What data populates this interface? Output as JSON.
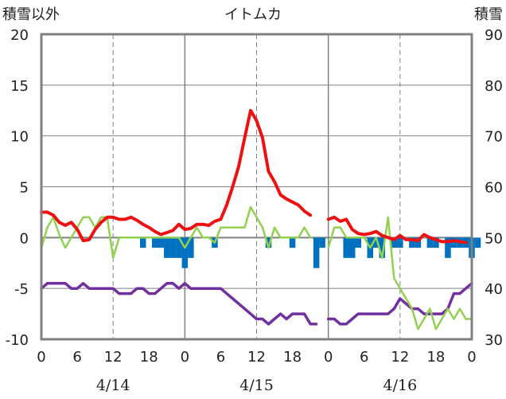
{
  "chart_data": {
    "type": "line",
    "title": "イトムカ",
    "left_axis_label": "積雪以外",
    "right_axis_label": "積雪",
    "left_ylim": [
      -10,
      20
    ],
    "left_yticks": [
      "20",
      "15",
      "10",
      "5",
      "0",
      "-5",
      "-10"
    ],
    "right_ylim": [
      30,
      90
    ],
    "right_yticks": [
      "90",
      "80",
      "70",
      "60",
      "50",
      "40",
      "30"
    ],
    "x_hour_ticks": [
      "0",
      "6",
      "12",
      "18",
      "0",
      "6",
      "12",
      "18",
      "0",
      "6",
      "12",
      "18",
      "0"
    ],
    "date_labels": [
      "4/14",
      "4/15",
      "4/16"
    ],
    "grid": true,
    "colors": {
      "temperature": "#ee1111",
      "green_series": "#92d050",
      "purple_series": "#7030a0",
      "bars": "#0070c0",
      "frame": "#808080",
      "zero_line": "#808080",
      "grid": "#808080"
    },
    "series": [
      {
        "name": "temperature",
        "segments": [
          [
            [
              0,
              2.5
            ],
            [
              1,
              2.5
            ],
            [
              2,
              2.2
            ],
            [
              3,
              1.5
            ],
            [
              4,
              1.2
            ],
            [
              5,
              1.5
            ],
            [
              6,
              0.8
            ],
            [
              7,
              -0.3
            ],
            [
              8,
              -0.2
            ],
            [
              9,
              0.8
            ],
            [
              10,
              1.5
            ],
            [
              11,
              2.0
            ],
            [
              12,
              2.0
            ],
            [
              13,
              1.8
            ],
            [
              14,
              1.8
            ],
            [
              15,
              2.0
            ],
            [
              16,
              1.7
            ],
            [
              17,
              1.3
            ],
            [
              18,
              1.0
            ],
            [
              19,
              0.6
            ],
            [
              20,
              0.3
            ],
            [
              21,
              0.5
            ],
            [
              22,
              0.7
            ],
            [
              23,
              1.3
            ],
            [
              24,
              0.8
            ],
            [
              25,
              0.9
            ],
            [
              26,
              1.3
            ],
            [
              27,
              1.3
            ],
            [
              28,
              1.2
            ],
            [
              29,
              1.6
            ],
            [
              30,
              1.8
            ],
            [
              31,
              3.2
            ],
            [
              32,
              5.0
            ],
            [
              33,
              7.0
            ],
            [
              34,
              9.8
            ],
            [
              35,
              12.5
            ],
            [
              36,
              11.5
            ],
            [
              37,
              9.8
            ],
            [
              38,
              6.5
            ],
            [
              39,
              5.5
            ],
            [
              40,
              4.2
            ],
            [
              41,
              3.8
            ],
            [
              42,
              3.5
            ],
            [
              43,
              3.2
            ],
            [
              44,
              2.6
            ],
            [
              45,
              2.2
            ]
          ],
          [
            [
              48,
              1.8
            ],
            [
              49,
              2.0
            ],
            [
              50,
              1.6
            ],
            [
              51,
              1.8
            ],
            [
              52,
              0.8
            ],
            [
              53,
              0.4
            ],
            [
              54,
              0.3
            ],
            [
              55,
              0.4
            ],
            [
              56,
              0.6
            ],
            [
              57,
              0.2
            ],
            [
              58,
              0.0
            ],
            [
              59,
              -0.2
            ],
            [
              60,
              0.2
            ],
            [
              61,
              -0.2
            ],
            [
              62,
              -0.2
            ],
            [
              63,
              -0.3
            ],
            [
              64,
              0.3
            ],
            [
              65,
              0.0
            ],
            [
              66,
              -0.2
            ],
            [
              67,
              -0.4
            ],
            [
              68,
              -0.4
            ],
            [
              69,
              -0.3
            ],
            [
              70,
              -0.4
            ],
            [
              71,
              -0.5
            ]
          ]
        ]
      },
      {
        "name": "green_series",
        "segments": [
          [
            [
              0,
              -1.0
            ],
            [
              1,
              1.0
            ],
            [
              2,
              2.0
            ],
            [
              3,
              0.3
            ],
            [
              4,
              -1.0
            ],
            [
              5,
              0.0
            ],
            [
              6,
              1.0
            ],
            [
              7,
              2.0
            ],
            [
              8,
              2.0
            ],
            [
              9,
              1.0
            ],
            [
              10,
              2.0
            ],
            [
              11,
              2.0
            ],
            [
              12,
              -2.0
            ],
            [
              13,
              0.0
            ],
            [
              14,
              0.0
            ],
            [
              15,
              0.0
            ],
            [
              16,
              0.0
            ],
            [
              17,
              0.0
            ],
            [
              18,
              0.0
            ],
            [
              19,
              0.0
            ],
            [
              20,
              0.0
            ],
            [
              21,
              0.0
            ],
            [
              22,
              0.0
            ],
            [
              23,
              0.0
            ],
            [
              24,
              -1.0
            ],
            [
              25,
              0.0
            ],
            [
              26,
              1.0
            ],
            [
              27,
              0.0
            ],
            [
              28,
              0.0
            ],
            [
              29,
              -0.5
            ],
            [
              30,
              1.0
            ],
            [
              31,
              1.0
            ],
            [
              32,
              1.0
            ],
            [
              33,
              1.0
            ],
            [
              34,
              1.0
            ],
            [
              35,
              3.0
            ],
            [
              36,
              2.0
            ],
            [
              37,
              1.0
            ],
            [
              38,
              -1.0
            ],
            [
              39,
              1.0
            ],
            [
              40,
              0.0
            ],
            [
              41,
              0.0
            ],
            [
              42,
              0.0
            ],
            [
              43,
              0.0
            ],
            [
              44,
              1.0
            ],
            [
              45,
              0.0
            ]
          ],
          [
            [
              48,
              -1.0
            ],
            [
              49,
              1.0
            ],
            [
              50,
              1.0
            ],
            [
              51,
              0.0
            ],
            [
              52,
              0.0
            ],
            [
              53,
              0.0
            ],
            [
              54,
              0.0
            ],
            [
              55,
              -1.0
            ],
            [
              56,
              0.0
            ],
            [
              57,
              -2.0
            ],
            [
              58,
              2.0
            ],
            [
              59,
              -4.0
            ],
            [
              60,
              -5.0
            ],
            [
              61,
              -6.0
            ],
            [
              62,
              -7.0
            ],
            [
              63,
              -9.0
            ],
            [
              64,
              -8.0
            ],
            [
              65,
              -7.0
            ],
            [
              66,
              -9.0
            ],
            [
              67,
              -8.0
            ],
            [
              68,
              -7.0
            ],
            [
              69,
              -8.0
            ],
            [
              70,
              -7.0
            ],
            [
              71,
              -8.0
            ],
            [
              72,
              -8.0
            ]
          ]
        ]
      },
      {
        "name": "purple_series",
        "segments": [
          [
            [
              0,
              -5.0
            ],
            [
              1,
              -4.5
            ],
            [
              2,
              -4.5
            ],
            [
              3,
              -4.5
            ],
            [
              4,
              -4.5
            ],
            [
              5,
              -5.0
            ],
            [
              6,
              -5.0
            ],
            [
              7,
              -4.5
            ],
            [
              8,
              -5.0
            ],
            [
              9,
              -5.0
            ],
            [
              10,
              -5.0
            ],
            [
              11,
              -5.0
            ],
            [
              12,
              -5.0
            ],
            [
              13,
              -5.5
            ],
            [
              14,
              -5.5
            ],
            [
              15,
              -5.5
            ],
            [
              16,
              -5.0
            ],
            [
              17,
              -5.0
            ],
            [
              18,
              -5.5
            ],
            [
              19,
              -5.5
            ],
            [
              20,
              -5.0
            ],
            [
              21,
              -4.5
            ],
            [
              22,
              -4.5
            ],
            [
              23,
              -5.0
            ],
            [
              24,
              -4.5
            ],
            [
              25,
              -5.0
            ],
            [
              26,
              -5.0
            ],
            [
              27,
              -5.0
            ],
            [
              28,
              -5.0
            ],
            [
              29,
              -5.0
            ],
            [
              30,
              -5.0
            ],
            [
              31,
              -5.5
            ],
            [
              32,
              -6.0
            ],
            [
              33,
              -6.5
            ],
            [
              34,
              -7.0
            ],
            [
              35,
              -7.5
            ],
            [
              36,
              -8.0
            ],
            [
              37,
              -8.0
            ],
            [
              38,
              -8.5
            ],
            [
              39,
              -8.0
            ],
            [
              40,
              -7.5
            ],
            [
              41,
              -8.0
            ],
            [
              42,
              -7.5
            ],
            [
              43,
              -7.5
            ],
            [
              44,
              -7.5
            ],
            [
              45,
              -8.5
            ],
            [
              46,
              -8.5
            ]
          ],
          [
            [
              48,
              -8.0
            ],
            [
              49,
              -8.0
            ],
            [
              50,
              -8.5
            ],
            [
              51,
              -8.5
            ],
            [
              52,
              -8.0
            ],
            [
              53,
              -7.5
            ],
            [
              54,
              -7.5
            ],
            [
              55,
              -7.5
            ],
            [
              56,
              -7.5
            ],
            [
              57,
              -7.5
            ],
            [
              58,
              -7.5
            ],
            [
              59,
              -7.0
            ],
            [
              60,
              -6.0
            ],
            [
              61,
              -6.5
            ],
            [
              62,
              -7.0
            ],
            [
              63,
              -7.0
            ],
            [
              64,
              -7.5
            ],
            [
              65,
              -7.5
            ],
            [
              66,
              -7.5
            ],
            [
              67,
              -7.5
            ],
            [
              68,
              -7.0
            ],
            [
              69,
              -5.5
            ],
            [
              70,
              -5.5
            ],
            [
              71,
              -5.0
            ],
            [
              72,
              -4.5
            ]
          ]
        ]
      }
    ],
    "bars": {
      "name": "blue_bars",
      "data": [
        [
          17,
          -1
        ],
        [
          19,
          -1
        ],
        [
          20,
          -1
        ],
        [
          21,
          -2
        ],
        [
          22,
          -2
        ],
        [
          23,
          -2
        ],
        [
          24,
          -3
        ],
        [
          25,
          -2
        ],
        [
          29,
          -1
        ],
        [
          38,
          -1
        ],
        [
          42,
          -1
        ],
        [
          46,
          -3
        ],
        [
          47,
          -1
        ],
        [
          51,
          -2
        ],
        [
          52,
          -2
        ],
        [
          53,
          -1
        ],
        [
          55,
          -2
        ],
        [
          56,
          -1
        ],
        [
          57,
          -2
        ],
        [
          59,
          -1
        ],
        [
          60,
          -1
        ],
        [
          62,
          -1
        ],
        [
          63,
          -1
        ],
        [
          65,
          -1
        ],
        [
          66,
          -1
        ],
        [
          68,
          -2
        ],
        [
          69,
          -1
        ],
        [
          70,
          -1
        ],
        [
          71,
          -1
        ],
        [
          72,
          -2
        ],
        [
          73,
          -1
        ]
      ]
    }
  }
}
